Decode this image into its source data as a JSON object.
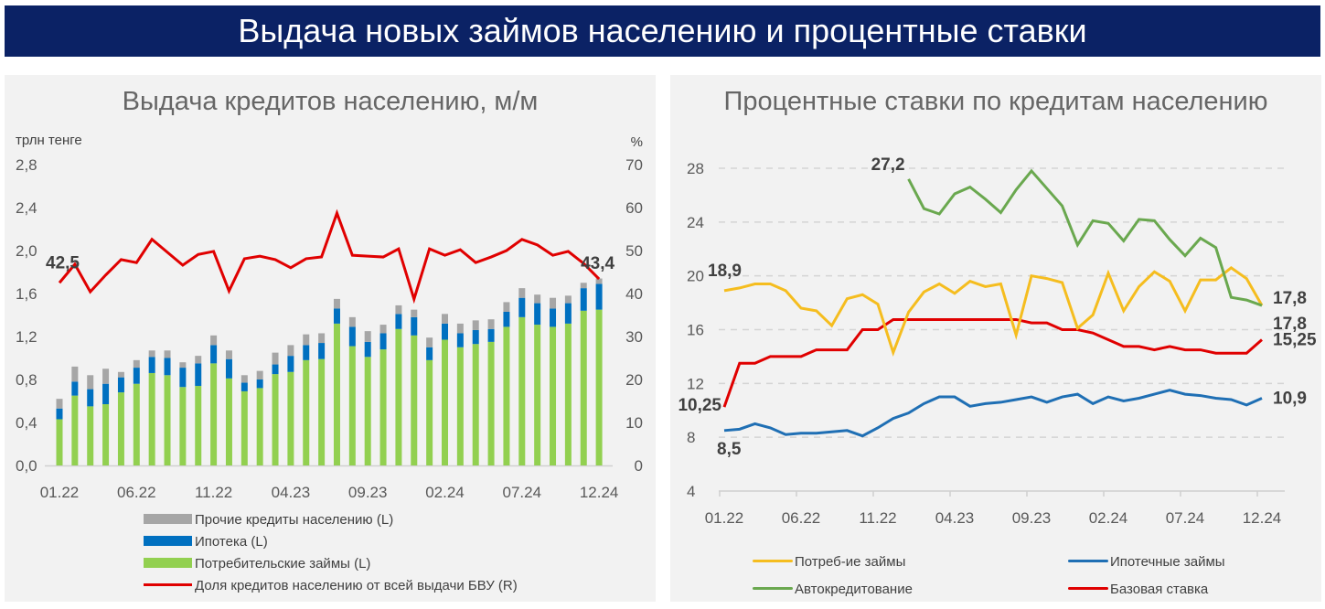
{
  "banner": {
    "title": "Выдача новых займов населению и процентные ставки"
  },
  "colors": {
    "banner_bg": "#0b2265",
    "other": "#a6a6a6",
    "mortgage": "#0070c0",
    "consumer": "#92d050",
    "share": "#e00000",
    "rate_consumer": "#f5bd1f",
    "rate_mortgage": "#1f6fb4",
    "rate_auto": "#6aa84f",
    "rate_base": "#e00000"
  },
  "chart_data": [
    {
      "type": "bar",
      "title": "Выдача кредитов населению, м/м",
      "ylabel_left": "трлн тенге",
      "ylabel_right": "%",
      "ylim_left": [
        0,
        2.8
      ],
      "yticks_left": [
        "0,0",
        "0,4",
        "0,8",
        "1,2",
        "1,6",
        "2,0",
        "2,4",
        "2,8"
      ],
      "ylim_right": [
        0,
        70
      ],
      "yticks_right": [
        "0",
        "10",
        "20",
        "30",
        "40",
        "50",
        "60",
        "70"
      ],
      "xtick_labels": [
        "01.22",
        "06.22",
        "11.22",
        "04.23",
        "09.23",
        "02.24",
        "07.24",
        "12.24"
      ],
      "xtick_index": [
        0,
        5,
        10,
        15,
        20,
        25,
        30,
        35
      ],
      "categories": [
        "01.22",
        "02.22",
        "03.22",
        "04.22",
        "05.22",
        "06.22",
        "07.22",
        "08.22",
        "09.22",
        "10.22",
        "11.22",
        "12.22",
        "01.23",
        "02.23",
        "03.23",
        "04.23",
        "05.23",
        "06.23",
        "07.23",
        "08.23",
        "09.23",
        "10.23",
        "11.23",
        "12.23",
        "01.24",
        "02.24",
        "03.24",
        "04.24",
        "05.24",
        "06.24",
        "07.24",
        "08.24",
        "09.24",
        "10.24",
        "11.24",
        "12.24"
      ],
      "stacked": true,
      "series": [
        {
          "name": "Потребительские займы (L)",
          "key": "consumer",
          "axis": "left",
          "values": [
            0.43,
            0.65,
            0.55,
            0.57,
            0.68,
            0.76,
            0.86,
            0.84,
            0.73,
            0.74,
            0.95,
            0.81,
            0.69,
            0.72,
            0.85,
            0.87,
            0.98,
            0.99,
            1.32,
            1.11,
            1.01,
            1.08,
            1.27,
            1.21,
            0.98,
            1.17,
            1.1,
            1.13,
            1.15,
            1.29,
            1.38,
            1.31,
            1.29,
            1.32,
            1.44,
            1.45
          ]
        },
        {
          "name": "Ипотека (L)",
          "key": "mortgage",
          "axis": "left",
          "values": [
            0.1,
            0.13,
            0.16,
            0.19,
            0.14,
            0.15,
            0.15,
            0.16,
            0.18,
            0.21,
            0.17,
            0.18,
            0.08,
            0.08,
            0.09,
            0.15,
            0.14,
            0.15,
            0.14,
            0.18,
            0.14,
            0.15,
            0.14,
            0.17,
            0.12,
            0.15,
            0.13,
            0.13,
            0.12,
            0.14,
            0.18,
            0.2,
            0.17,
            0.19,
            0.21,
            0.24
          ]
        },
        {
          "name": "Прочие кредиты населению (L)",
          "key": "other",
          "axis": "left",
          "values": [
            0.09,
            0.14,
            0.13,
            0.14,
            0.05,
            0.07,
            0.06,
            0.07,
            0.05,
            0.07,
            0.09,
            0.08,
            0.07,
            0.08,
            0.11,
            0.1,
            0.1,
            0.09,
            0.09,
            0.09,
            0.1,
            0.08,
            0.08,
            0.07,
            0.09,
            0.09,
            0.09,
            0.09,
            0.09,
            0.09,
            0.09,
            0.08,
            0.1,
            0.07,
            0.05,
            0.05
          ]
        },
        {
          "name": "Доля кредитов населению от всей выдачи БВУ (R)",
          "key": "share",
          "axis": "right",
          "type": "line",
          "values": [
            42.5,
            46.8,
            40.4,
            44.3,
            47.9,
            47.2,
            52.6,
            49.6,
            46.6,
            49.1,
            49.8,
            40.6,
            48.1,
            48.7,
            47.9,
            46.0,
            48.1,
            48.5,
            58.7,
            48.9,
            48.7,
            48.5,
            50.4,
            38.7,
            50.4,
            48.9,
            50.2,
            47.2,
            48.5,
            50.0,
            52.6,
            51.3,
            48.9,
            49.8,
            47.0,
            43.4
          ]
        }
      ],
      "annotations": [
        {
          "index": 0,
          "series": "share",
          "text": "42,5"
        },
        {
          "index": 35,
          "series": "share",
          "text": "43,4"
        }
      ],
      "legend_position": "bottom-left"
    },
    {
      "type": "line",
      "title": "Процентные ставки по кредитам населению",
      "ylim": [
        4,
        28
      ],
      "yticks": [
        "4",
        "8",
        "12",
        "16",
        "20",
        "24",
        "28"
      ],
      "grid": "dashed-horizontal",
      "xtick_labels": [
        "01.22",
        "06.22",
        "11.22",
        "04.23",
        "09.23",
        "02.24",
        "07.24",
        "12.24"
      ],
      "xtick_index": [
        0,
        5,
        10,
        15,
        20,
        25,
        30,
        35
      ],
      "series": [
        {
          "name": "Потреб-ие займы",
          "key": "rate_consumer",
          "values": [
            18.9,
            19.1,
            19.4,
            19.4,
            18.9,
            17.6,
            17.4,
            16.3,
            18.3,
            18.6,
            17.9,
            14.3,
            17.3,
            18.8,
            19.4,
            18.7,
            19.6,
            19.2,
            19.4,
            15.6,
            20.0,
            19.8,
            19.5,
            16.1,
            17.1,
            20.2,
            17.4,
            19.2,
            20.3,
            19.6,
            17.4,
            19.7,
            19.7,
            20.6,
            19.8,
            17.8
          ]
        },
        {
          "name": "Ипотечные займы",
          "key": "rate_mortgage",
          "values": [
            8.5,
            8.6,
            9.0,
            8.7,
            8.2,
            8.3,
            8.3,
            8.4,
            8.5,
            8.1,
            8.7,
            9.4,
            9.8,
            10.5,
            11.0,
            11.0,
            10.3,
            10.5,
            10.6,
            10.8,
            11.0,
            10.6,
            11.0,
            11.2,
            10.5,
            11.0,
            10.7,
            10.9,
            11.2,
            11.5,
            11.2,
            11.1,
            10.9,
            10.8,
            10.4,
            10.9
          ]
        },
        {
          "name": "Автокредитование",
          "key": "rate_auto",
          "start_index": 12,
          "values": [
            27.2,
            25.0,
            24.6,
            26.1,
            26.6,
            25.7,
            24.7,
            26.4,
            27.8,
            26.5,
            25.2,
            22.3,
            24.1,
            23.9,
            22.6,
            24.2,
            24.1,
            22.7,
            21.5,
            22.8,
            22.1,
            18.4,
            18.2,
            17.8
          ]
        },
        {
          "name": "Базовая ставка",
          "key": "rate_base",
          "values": [
            10.25,
            13.5,
            13.5,
            14.0,
            14.0,
            14.0,
            14.5,
            14.5,
            14.5,
            16.0,
            16.0,
            16.75,
            16.75,
            16.75,
            16.75,
            16.75,
            16.75,
            16.75,
            16.75,
            16.75,
            16.5,
            16.5,
            16.0,
            16.0,
            15.75,
            15.25,
            14.75,
            14.75,
            14.5,
            14.75,
            14.5,
            14.5,
            14.25,
            14.25,
            14.25,
            15.25
          ]
        }
      ],
      "annotations": [
        {
          "series": "rate_consumer",
          "index": 0,
          "text": "18,9"
        },
        {
          "series": "rate_mortgage",
          "index": 0,
          "text": "8,5"
        },
        {
          "series": "rate_base",
          "index": 0,
          "text": "10,25"
        },
        {
          "series": "rate_auto",
          "index": 12,
          "text": "27,2"
        },
        {
          "series": "rate_auto",
          "index": 35,
          "text": "17,8"
        },
        {
          "series": "rate_consumer",
          "index": 35,
          "text": "17,8"
        },
        {
          "series": "rate_base",
          "index": 35,
          "text": "15,25"
        },
        {
          "series": "rate_mortgage",
          "index": 35,
          "text": "10,9"
        }
      ],
      "legend_position": "bottom"
    }
  ]
}
